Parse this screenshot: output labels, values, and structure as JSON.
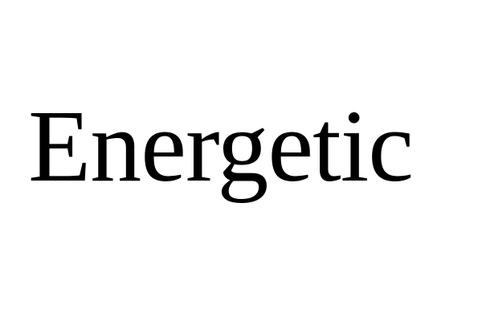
{
  "main": {
    "word": "Energetic"
  },
  "colors": {
    "background": "#ffffff",
    "text": "#000000"
  }
}
